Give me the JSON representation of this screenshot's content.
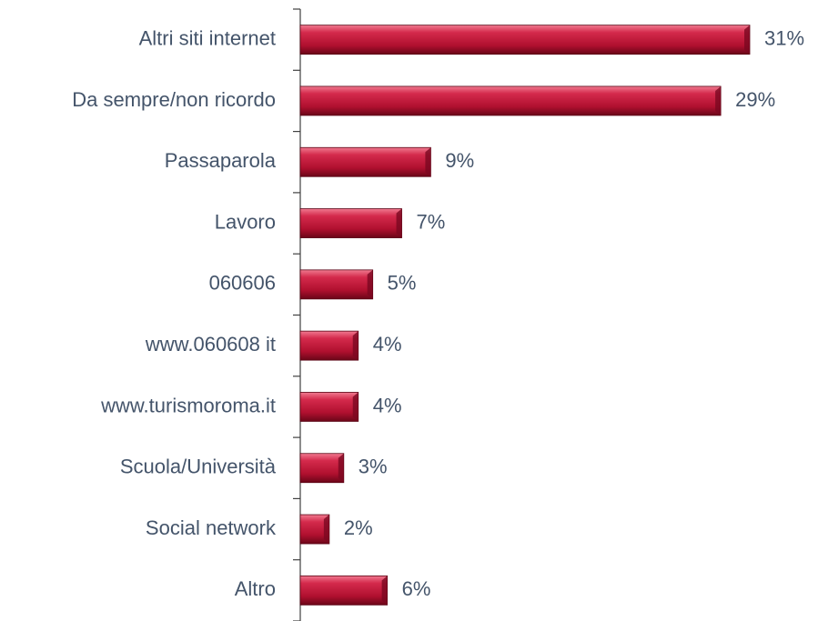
{
  "chart_data": {
    "type": "bar",
    "orientation": "horizontal",
    "categories": [
      "Altri siti internet",
      "Da sempre/non ricordo",
      "Passaparola",
      "Lavoro",
      "060606",
      "www.060608 it",
      "www.turismoroma.it",
      "Scuola/Università",
      "Social network",
      "Altro"
    ],
    "values": [
      31,
      29,
      9,
      7,
      5,
      4,
      4,
      3,
      2,
      6
    ],
    "value_labels": [
      "31%",
      "29%",
      "9%",
      "7%",
      "5%",
      "4%",
      "4%",
      "3%",
      "2%",
      "6%"
    ],
    "color": "#c0143c"
  }
}
